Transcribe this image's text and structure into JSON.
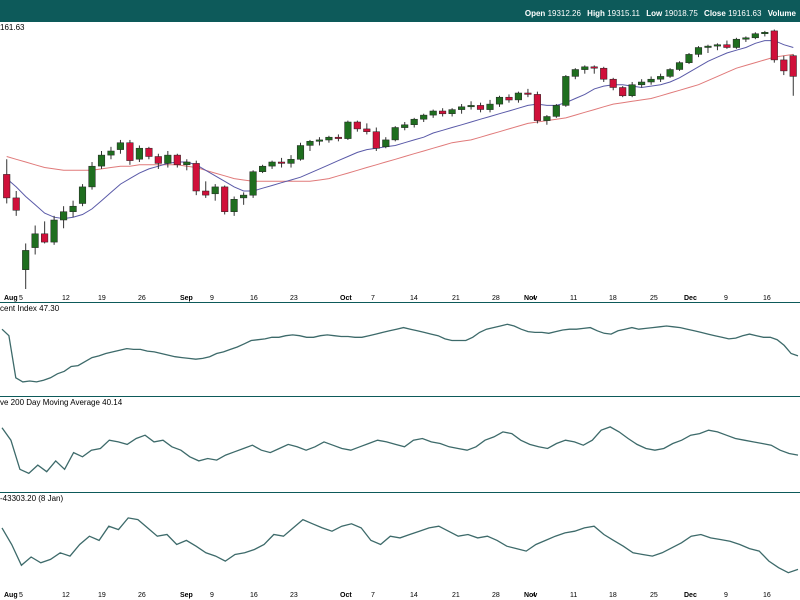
{
  "header": {
    "open_label": "Open",
    "open_value": "19312.26",
    "high_label": "High",
    "high_value": "19315.11",
    "low_label": "Low",
    "low_value": "19018.75",
    "close_label": "Close",
    "close_value": "19161.63",
    "volume_label": "Volume"
  },
  "colors": {
    "frame": "#0d5a5a",
    "up": "#1f6e1f",
    "down": "#d0103a",
    "ma_short": "#5a5aa8",
    "ma_long": "#e07a7a",
    "indicator": "#3d6a6a"
  },
  "chart_data": [
    {
      "type": "candlestick",
      "panel": "price",
      "last_value_label": "161.63",
      "x_tick_labels": [
        "Aug",
        "5",
        "12",
        "19",
        "26",
        "Sep",
        "9",
        "16",
        "23",
        "Oct",
        "7",
        "14",
        "21",
        "28",
        "Nov",
        "4",
        "11",
        "18",
        "25",
        "Dec",
        "9",
        "16"
      ],
      "candles": [
        [
          18450,
          18560,
          18240,
          18280
        ],
        [
          18280,
          18330,
          18150,
          18190
        ],
        [
          17760,
          17950,
          17620,
          17900
        ],
        [
          17920,
          18080,
          17870,
          18020
        ],
        [
          18020,
          18110,
          17950,
          17960
        ],
        [
          17960,
          18150,
          17940,
          18120
        ],
        [
          18120,
          18220,
          18060,
          18180
        ],
        [
          18180,
          18260,
          18140,
          18220
        ],
        [
          18240,
          18380,
          18220,
          18360
        ],
        [
          18360,
          18540,
          18340,
          18510
        ],
        [
          18510,
          18620,
          18490,
          18590
        ],
        [
          18590,
          18650,
          18560,
          18620
        ],
        [
          18630,
          18700,
          18600,
          18680
        ],
        [
          18680,
          18700,
          18520,
          18550
        ],
        [
          18560,
          18660,
          18540,
          18640
        ],
        [
          18640,
          18650,
          18560,
          18580
        ],
        [
          18580,
          18600,
          18490,
          18530
        ],
        [
          18530,
          18620,
          18500,
          18590
        ],
        [
          18590,
          18600,
          18500,
          18520
        ],
        [
          18520,
          18560,
          18480,
          18540
        ],
        [
          18530,
          18550,
          18300,
          18330
        ],
        [
          18330,
          18400,
          18280,
          18300
        ],
        [
          18310,
          18380,
          18260,
          18360
        ],
        [
          18360,
          18370,
          18160,
          18180
        ],
        [
          18180,
          18290,
          18150,
          18270
        ],
        [
          18280,
          18320,
          18230,
          18300
        ],
        [
          18300,
          18480,
          18280,
          18470
        ],
        [
          18470,
          18520,
          18460,
          18510
        ],
        [
          18510,
          18550,
          18490,
          18540
        ],
        [
          18540,
          18570,
          18500,
          18530
        ],
        [
          18530,
          18590,
          18500,
          18560
        ],
        [
          18560,
          18680,
          18550,
          18660
        ],
        [
          18660,
          18700,
          18620,
          18690
        ],
        [
          18690,
          18720,
          18660,
          18700
        ],
        [
          18700,
          18730,
          18680,
          18720
        ],
        [
          18720,
          18740,
          18690,
          18710
        ],
        [
          18710,
          18840,
          18700,
          18830
        ],
        [
          18830,
          18840,
          18760,
          18780
        ],
        [
          18780,
          18820,
          18740,
          18760
        ],
        [
          18760,
          18790,
          18620,
          18640
        ],
        [
          18650,
          18720,
          18640,
          18700
        ],
        [
          18700,
          18800,
          18690,
          18790
        ],
        [
          18790,
          18830,
          18770,
          18810
        ],
        [
          18810,
          18860,
          18790,
          18850
        ],
        [
          18850,
          18890,
          18830,
          18880
        ],
        [
          18880,
          18920,
          18860,
          18910
        ],
        [
          18910,
          18930,
          18870,
          18890
        ],
        [
          18890,
          18930,
          18870,
          18920
        ],
        [
          18920,
          18960,
          18890,
          18940
        ],
        [
          18940,
          18980,
          18920,
          18950
        ],
        [
          18950,
          18970,
          18900,
          18920
        ],
        [
          18920,
          18990,
          18900,
          18960
        ],
        [
          18960,
          19020,
          18940,
          19010
        ],
        [
          19010,
          19030,
          18970,
          18990
        ],
        [
          18990,
          19050,
          18970,
          19040
        ],
        [
          19040,
          19070,
          19010,
          19030
        ],
        [
          19030,
          19050,
          18820,
          18840
        ],
        [
          18840,
          18880,
          18810,
          18870
        ],
        [
          18870,
          18960,
          18860,
          18950
        ],
        [
          18950,
          19170,
          18940,
          19160
        ],
        [
          19160,
          19220,
          19140,
          19210
        ],
        [
          19210,
          19240,
          19180,
          19230
        ],
        [
          19230,
          19240,
          19180,
          19220
        ],
        [
          19220,
          19230,
          19120,
          19140
        ],
        [
          19140,
          19150,
          19060,
          19080
        ],
        [
          19080,
          19090,
          19010,
          19020
        ],
        [
          19020,
          19120,
          19010,
          19100
        ],
        [
          19100,
          19140,
          19080,
          19120
        ],
        [
          19120,
          19160,
          19100,
          19140
        ],
        [
          19140,
          19180,
          19120,
          19160
        ],
        [
          19160,
          19220,
          19150,
          19210
        ],
        [
          19210,
          19270,
          19200,
          19260
        ],
        [
          19260,
          19330,
          19250,
          19320
        ],
        [
          19320,
          19380,
          19300,
          19370
        ],
        [
          19370,
          19390,
          19330,
          19380
        ],
        [
          19380,
          19400,
          19350,
          19390
        ],
        [
          19390,
          19420,
          19360,
          19370
        ],
        [
          19370,
          19440,
          19360,
          19430
        ],
        [
          19430,
          19450,
          19410,
          19440
        ],
        [
          19440,
          19480,
          19430,
          19470
        ],
        [
          19470,
          19490,
          19450,
          19480
        ],
        [
          19490,
          19500,
          19260,
          19280
        ],
        [
          19280,
          19310,
          19170,
          19200
        ],
        [
          19310,
          19320,
          19020,
          19160
        ]
      ],
      "ma_short": [
        18420,
        18360,
        18290,
        18230,
        18170,
        18140,
        18130,
        18140,
        18160,
        18200,
        18260,
        18320,
        18380,
        18420,
        18460,
        18490,
        18510,
        18530,
        18540,
        18540,
        18520,
        18480,
        18440,
        18400,
        18360,
        18330,
        18330,
        18350,
        18370,
        18390,
        18410,
        18430,
        18460,
        18490,
        18520,
        18550,
        18580,
        18610,
        18630,
        18640,
        18650,
        18660,
        18680,
        18700,
        18720,
        18750,
        18770,
        18790,
        18810,
        18830,
        18850,
        18870,
        18890,
        18910,
        18930,
        18950,
        18960,
        18950,
        18950,
        18970,
        19000,
        19030,
        19070,
        19090,
        19100,
        19100,
        19090,
        19080,
        19090,
        19100,
        19120,
        19150,
        19190,
        19230,
        19270,
        19300,
        19330,
        19350,
        19370,
        19400,
        19420,
        19420,
        19390,
        19370
      ],
      "ma_long": [
        18580,
        18560,
        18540,
        18520,
        18500,
        18490,
        18480,
        18480,
        18480,
        18480,
        18490,
        18500,
        18510,
        18510,
        18520,
        18520,
        18520,
        18520,
        18520,
        18510,
        18500,
        18480,
        18460,
        18440,
        18420,
        18410,
        18400,
        18400,
        18400,
        18400,
        18400,
        18400,
        18400,
        18410,
        18420,
        18440,
        18460,
        18480,
        18500,
        18520,
        18540,
        18560,
        18580,
        18600,
        18620,
        18640,
        18660,
        18680,
        18690,
        18700,
        18720,
        18740,
        18760,
        18780,
        18800,
        18820,
        18830,
        18840,
        18850,
        18860,
        18880,
        18900,
        18920,
        18940,
        18960,
        18970,
        18980,
        18990,
        19000,
        19020,
        19040,
        19060,
        19080,
        19100,
        19130,
        19160,
        19190,
        19220,
        19240,
        19260,
        19280,
        19300,
        19310,
        19320
      ],
      "y_range": [
        17620,
        19540
      ]
    },
    {
      "type": "line",
      "panel": "indicator-1",
      "title": "cent Index 47.30",
      "values": [
        80,
        72,
        20,
        15,
        16,
        15,
        17,
        20,
        25,
        28,
        34,
        35,
        40,
        45,
        47,
        50,
        52,
        54,
        56,
        55,
        55,
        53,
        52,
        50,
        48,
        46,
        45,
        44,
        43,
        44,
        46,
        50,
        52,
        55,
        58,
        62,
        66,
        67,
        68,
        70,
        70,
        72,
        73,
        72,
        70,
        70,
        72,
        73,
        72,
        71,
        71,
        70,
        70,
        72,
        74,
        76,
        78,
        80,
        82,
        80,
        78,
        76,
        74,
        72,
        68,
        66,
        66,
        66,
        70,
        76,
        80,
        82,
        84,
        86,
        84,
        80,
        77,
        76,
        76,
        75,
        77,
        79,
        80,
        80,
        81,
        82,
        78,
        75,
        74,
        78,
        80,
        82,
        80,
        81,
        82,
        83,
        84,
        83,
        82,
        80,
        78,
        76,
        74,
        72,
        70,
        68,
        69,
        72,
        74,
        72,
        70,
        70,
        67,
        60,
        50,
        47
      ],
      "y_range": [
        0,
        100
      ]
    },
    {
      "type": "line",
      "panel": "indicator-2",
      "title": "ve 200 Day Moving Average 40.14",
      "values": [
        75,
        60,
        25,
        20,
        30,
        22,
        35,
        25,
        45,
        40,
        48,
        50,
        60,
        58,
        55,
        62,
        66,
        58,
        60,
        52,
        48,
        40,
        35,
        38,
        36,
        42,
        46,
        50,
        54,
        48,
        45,
        50,
        55,
        52,
        48,
        52,
        58,
        54,
        50,
        48,
        52,
        56,
        60,
        58,
        55,
        52,
        60,
        62,
        58,
        56,
        52,
        50,
        48,
        52,
        60,
        64,
        70,
        68,
        60,
        55,
        52,
        50,
        56,
        60,
        58,
        54,
        60,
        72,
        76,
        70,
        62,
        55,
        50,
        48,
        50,
        56,
        60,
        66,
        68,
        72,
        70,
        66,
        62,
        60,
        58,
        56,
        54,
        48,
        44,
        42
      ],
      "y_range": [
        0,
        100
      ]
    },
    {
      "type": "line",
      "panel": "indicator-3",
      "title": "-43303.20 (8 Jan)",
      "values": [
        70,
        50,
        25,
        35,
        28,
        32,
        40,
        36,
        50,
        60,
        55,
        72,
        68,
        82,
        80,
        70,
        60,
        62,
        50,
        55,
        48,
        40,
        36,
        30,
        38,
        40,
        44,
        50,
        62,
        60,
        70,
        80,
        75,
        70,
        66,
        72,
        75,
        70,
        55,
        50,
        60,
        58,
        62,
        66,
        70,
        72,
        66,
        60,
        62,
        58,
        60,
        55,
        48,
        45,
        42,
        50,
        55,
        60,
        64,
        66,
        70,
        72,
        62,
        55,
        48,
        40,
        38,
        36,
        40,
        46,
        52,
        60,
        62,
        58,
        56,
        54,
        50,
        45,
        42,
        30,
        22,
        16,
        20
      ],
      "y_range": [
        0,
        100
      ]
    }
  ]
}
